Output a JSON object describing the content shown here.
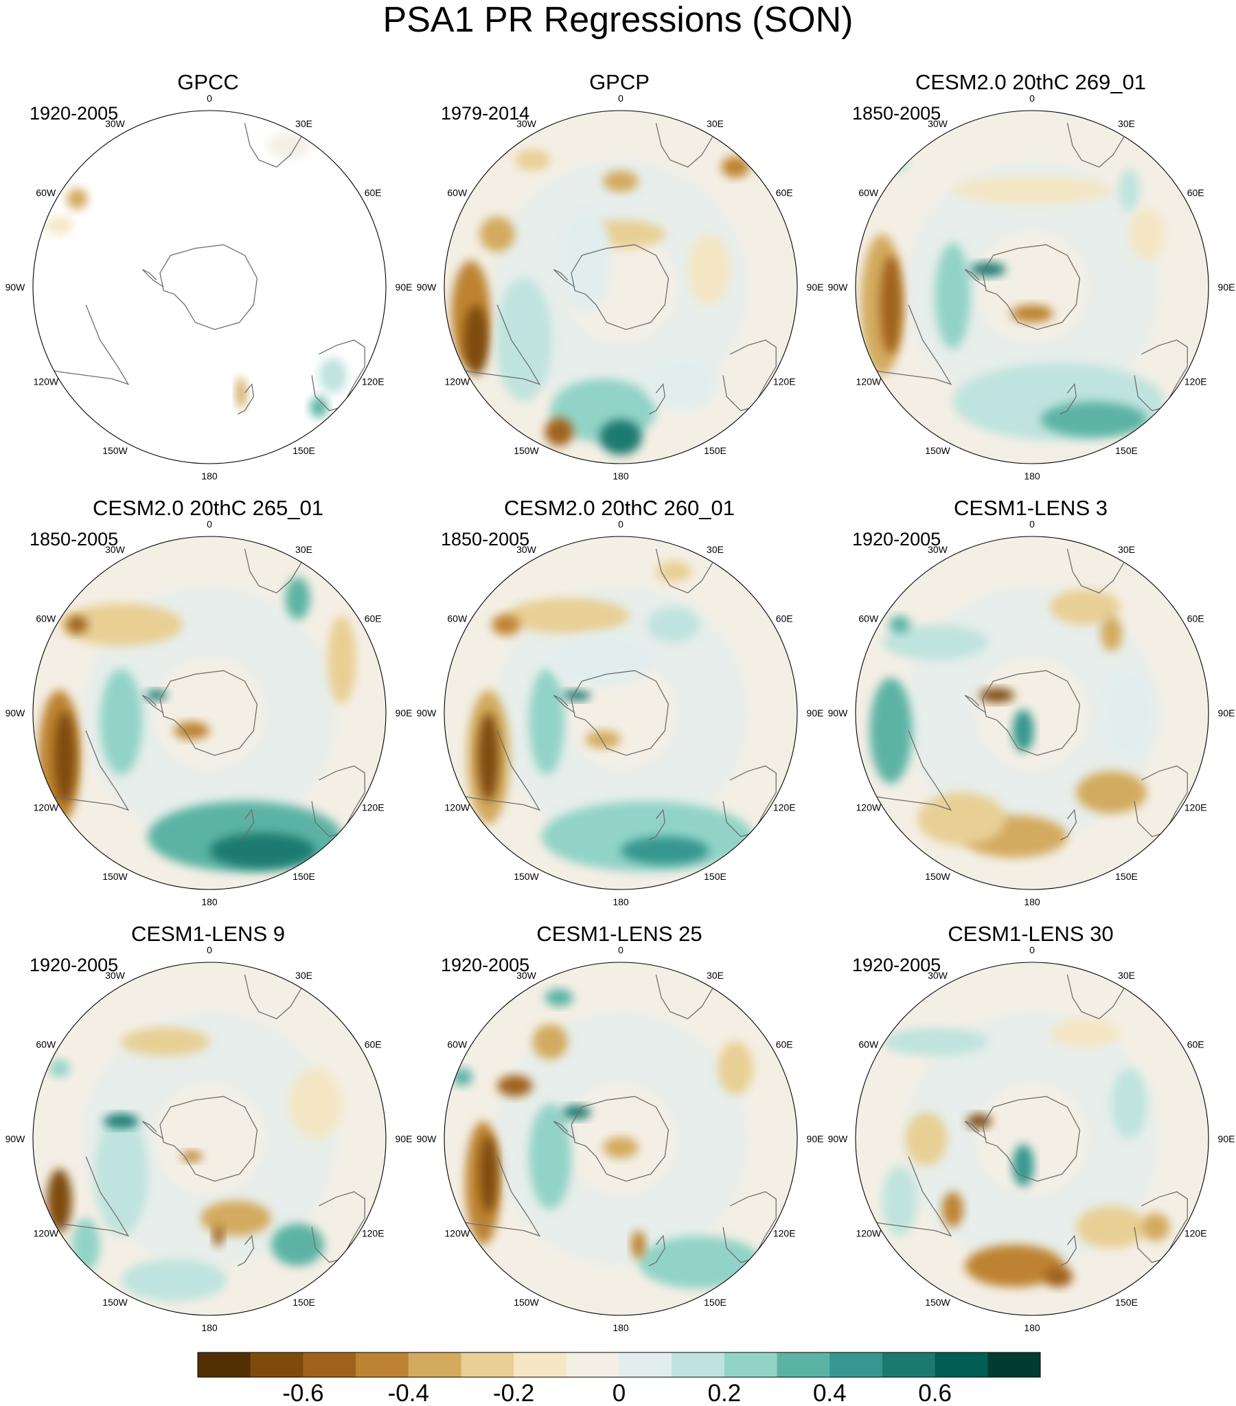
{
  "figure": {
    "title": "PSA1 PR Regressions (SON)"
  },
  "panels": [
    {
      "title": "GPCC",
      "period": "1920-2005",
      "pattern": "gpcc"
    },
    {
      "title": "GPCP",
      "period": "1979-2014",
      "pattern": "gpcp"
    },
    {
      "title": "CESM2.0 20thC 269_01",
      "period": "1850-2005",
      "pattern": "cesm2a"
    },
    {
      "title": "CESM2.0 20thC 265_01",
      "period": "1850-2005",
      "pattern": "cesm2b"
    },
    {
      "title": "CESM2.0 20thC 260_01",
      "period": "1850-2005",
      "pattern": "cesm2c"
    },
    {
      "title": "CESM1-LENS 3",
      "period": "1920-2005",
      "pattern": "lens3"
    },
    {
      "title": "CESM1-LENS 9",
      "period": "1920-2005",
      "pattern": "lens9"
    },
    {
      "title": "CESM1-LENS 25",
      "period": "1920-2005",
      "pattern": "lens25"
    },
    {
      "title": "CESM1-LENS 30",
      "period": "1920-2005",
      "pattern": "lens30"
    }
  ],
  "longitude_labels": [
    "0",
    "30E",
    "60E",
    "90E",
    "120E",
    "150E",
    "180",
    "150W",
    "120W",
    "90W",
    "60W",
    "30W"
  ],
  "colorbar": {
    "colors": [
      "#543005",
      "#7f4b0d",
      "#a0621a",
      "#be8333",
      "#d3aa5e",
      "#e8cf94",
      "#f5e6c4",
      "#f4efe5",
      "#e2eeee",
      "#bfe3de",
      "#92d3c7",
      "#5bb3a4",
      "#35978f",
      "#1a7a70",
      "#015e53",
      "#003c30"
    ],
    "tick_labels": [
      "-0.6",
      "-0.4",
      "-0.2",
      "0",
      "0.2",
      "0.4",
      "0.6"
    ]
  }
}
